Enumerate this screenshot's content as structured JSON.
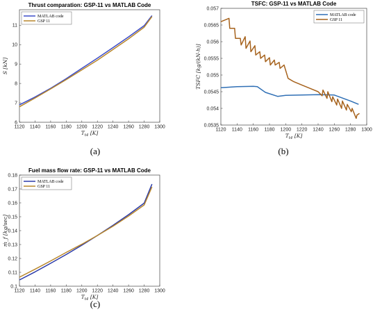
{
  "chart_data": [
    {
      "type": "line",
      "caption": "(a)",
      "title": "Thrust comparation: GSP-11 vs MATLAB Code",
      "xlabel": "T_t4 [K]",
      "ylabel": "S [kN]",
      "xlim": [
        1120,
        1300
      ],
      "ylim": [
        6,
        11.8
      ],
      "xticks": [
        "1120",
        "1140",
        "1160",
        "1180",
        "1200",
        "1220",
        "1240",
        "1260",
        "1280",
        "1300"
      ],
      "yticks": [
        "6",
        "7",
        "8",
        "9",
        "10",
        "11"
      ],
      "legend": "top-left",
      "series": [
        {
          "name": "MATLAB code",
          "color": "#3b4bc8",
          "x": [
            1120,
            1140,
            1160,
            1180,
            1200,
            1220,
            1240,
            1260,
            1280,
            1290
          ],
          "y": [
            6.9,
            7.3,
            7.75,
            8.25,
            8.78,
            9.3,
            9.85,
            10.4,
            10.98,
            11.5
          ]
        },
        {
          "name": "GSP 11",
          "color": "#b8862a",
          "x": [
            1120,
            1140,
            1160,
            1180,
            1200,
            1220,
            1240,
            1260,
            1280,
            1290
          ],
          "y": [
            6.8,
            7.25,
            7.72,
            8.2,
            8.7,
            9.2,
            9.75,
            10.3,
            10.9,
            11.45
          ]
        }
      ]
    },
    {
      "type": "line",
      "caption": "(b)",
      "title": "TSFC: GSP-11 vs MATLAB Code",
      "xlabel": "T_t4 [K]",
      "ylabel": "TSFC [kg/(kN·h)]",
      "xlim": [
        1120,
        1300
      ],
      "ylim": [
        0.0535,
        0.057
      ],
      "xticks": [
        "1120",
        "1140",
        "1160",
        "1180",
        "1200",
        "1220",
        "1240",
        "1260",
        "1280",
        "1300"
      ],
      "yticks": [
        "0.0535",
        "0.054",
        "0.0545",
        "0.055",
        "0.0555",
        "0.056",
        "0.0565",
        "0.057"
      ],
      "legend": "top-right",
      "series": [
        {
          "name": "MATLAB code",
          "color": "#2f6fb5",
          "x": [
            1120,
            1140,
            1160,
            1165,
            1175,
            1190,
            1200,
            1220,
            1240,
            1260,
            1280,
            1290
          ],
          "y": [
            0.05462,
            0.05465,
            0.05466,
            0.05465,
            0.05448,
            0.05436,
            0.05439,
            0.0544,
            0.05441,
            0.0544,
            0.05422,
            0.05412
          ]
        },
        {
          "name": "GSP 11",
          "color": "#a6621c",
          "x": [
            1120,
            1130,
            1131,
            1137,
            1138,
            1144,
            1145,
            1150,
            1151,
            1156,
            1157,
            1162,
            1163,
            1168,
            1169,
            1174,
            1175,
            1180,
            1181,
            1186,
            1187,
            1192,
            1193,
            1198,
            1203,
            1210,
            1220,
            1230,
            1240,
            1245,
            1246,
            1251,
            1252,
            1257,
            1258,
            1263,
            1264,
            1269,
            1270,
            1275,
            1276,
            1281,
            1282,
            1287,
            1288,
            1291
          ],
          "y": [
            0.0566,
            0.0567,
            0.0564,
            0.0564,
            0.0561,
            0.0561,
            0.0559,
            0.05615,
            0.0558,
            0.05602,
            0.0557,
            0.05588,
            0.0556,
            0.0557,
            0.0555,
            0.0556,
            0.0554,
            0.05552,
            0.0553,
            0.05545,
            0.0553,
            0.05538,
            0.0552,
            0.0553,
            0.0549,
            0.0548,
            0.0547,
            0.0546,
            0.0545,
            0.05438,
            0.05455,
            0.0543,
            0.0545,
            0.0542,
            0.05435,
            0.0541,
            0.05428,
            0.054,
            0.05422,
            0.05395,
            0.05412,
            0.0539,
            0.054,
            0.0537,
            0.0538,
            0.05385
          ]
        }
      ]
    },
    {
      "type": "line",
      "caption": "(c)",
      "title": "Fuel mass flow rate: GSP-11 vs MATLAB Code",
      "xlabel": "T_t4 [K]",
      "ylabel": "ṁ_f [kg/sec]",
      "xlim": [
        1120,
        1300
      ],
      "ylim": [
        0.1,
        0.18
      ],
      "xticks": [
        "1120",
        "1140",
        "1160",
        "1180",
        "1200",
        "1220",
        "1240",
        "1260",
        "1280",
        "1300"
      ],
      "yticks": [
        "0.1",
        "0.11",
        "0.12",
        "0.13",
        "0.14",
        "0.15",
        "0.16",
        "0.17",
        "0.18"
      ],
      "legend": "top-left",
      "series": [
        {
          "name": "MATLAB code",
          "color": "#2b3aa8",
          "x": [
            1120,
            1140,
            1160,
            1180,
            1200,
            1220,
            1240,
            1260,
            1280,
            1290
          ],
          "y": [
            0.1045,
            0.1103,
            0.1165,
            0.1228,
            0.1295,
            0.1365,
            0.1438,
            0.1515,
            0.1598,
            0.1735
          ]
        },
        {
          "name": "GSP 11",
          "color": "#b8862a",
          "x": [
            1120,
            1140,
            1160,
            1180,
            1200,
            1220,
            1240,
            1260,
            1280,
            1290
          ],
          "y": [
            0.1065,
            0.1122,
            0.1182,
            0.1243,
            0.1302,
            0.1365,
            0.1432,
            0.1505,
            0.1585,
            0.1715
          ]
        }
      ]
    }
  ]
}
